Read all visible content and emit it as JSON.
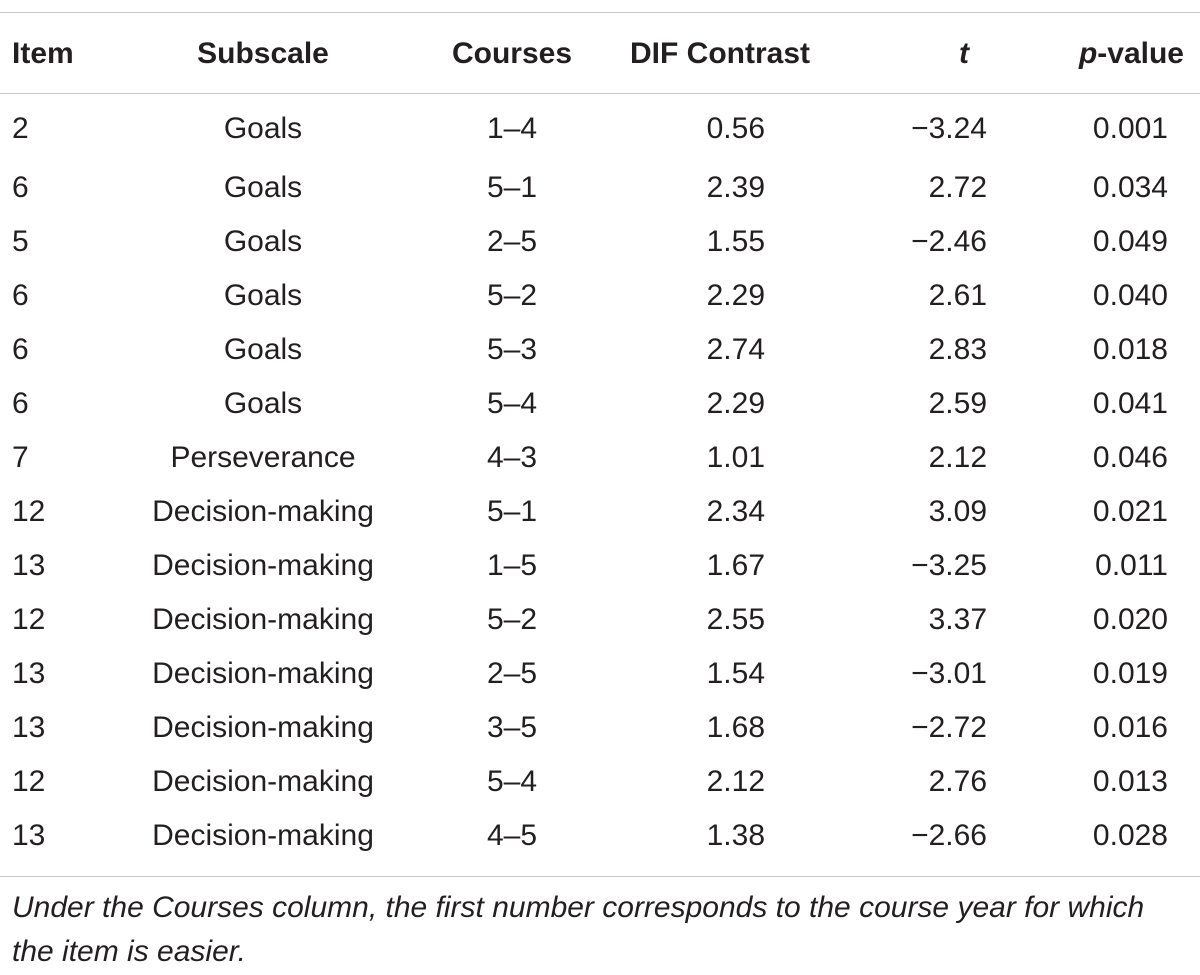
{
  "table": {
    "headers": {
      "item": "Item",
      "subscale": "Subscale",
      "courses": "Courses",
      "dif_contrast": "DIF Contrast",
      "t": "t",
      "p_italic": "p",
      "p_rest": "-value"
    },
    "rows": [
      {
        "item": "2",
        "subscale": "Goals",
        "courses": "1–4",
        "dif": "0.56",
        "t": "−3.24",
        "p": "0.001"
      },
      {
        "item": "6",
        "subscale": "Goals",
        "courses": "5–1",
        "dif": "2.39",
        "t": "2.72",
        "p": "0.034"
      },
      {
        "item": "5",
        "subscale": "Goals",
        "courses": "2–5",
        "dif": "1.55",
        "t": "−2.46",
        "p": "0.049"
      },
      {
        "item": "6",
        "subscale": "Goals",
        "courses": "5–2",
        "dif": "2.29",
        "t": "2.61",
        "p": "0.040"
      },
      {
        "item": "6",
        "subscale": "Goals",
        "courses": "5–3",
        "dif": "2.74",
        "t": "2.83",
        "p": "0.018"
      },
      {
        "item": "6",
        "subscale": "Goals",
        "courses": "5–4",
        "dif": "2.29",
        "t": "2.59",
        "p": "0.041"
      },
      {
        "item": "7",
        "subscale": "Perseverance",
        "courses": "4–3",
        "dif": "1.01",
        "t": "2.12",
        "p": "0.046"
      },
      {
        "item": "12",
        "subscale": "Decision-making",
        "courses": "5–1",
        "dif": "2.34",
        "t": "3.09",
        "p": "0.021"
      },
      {
        "item": "13",
        "subscale": "Decision-making",
        "courses": "1–5",
        "dif": "1.67",
        "t": "−3.25",
        "p": "0.011"
      },
      {
        "item": "12",
        "subscale": "Decision-making",
        "courses": "5–2",
        "dif": "2.55",
        "t": "3.37",
        "p": "0.020"
      },
      {
        "item": "13",
        "subscale": "Decision-making",
        "courses": "2–5",
        "dif": "1.54",
        "t": "−3.01",
        "p": "0.019"
      },
      {
        "item": "13",
        "subscale": "Decision-making",
        "courses": "3–5",
        "dif": "1.68",
        "t": "−2.72",
        "p": "0.016"
      },
      {
        "item": "12",
        "subscale": "Decision-making",
        "courses": "5–4",
        "dif": "2.12",
        "t": "2.76",
        "p": "0.013"
      },
      {
        "item": "13",
        "subscale": "Decision-making",
        "courses": "4–5",
        "dif": "1.38",
        "t": "−2.66",
        "p": "0.028"
      }
    ]
  },
  "footnote": "Under the Courses column, the first number corresponds to the course year for which the item is easier.",
  "colors": {
    "text": "#231f20",
    "rule": "#c9c9c9",
    "background": "#ffffff"
  }
}
